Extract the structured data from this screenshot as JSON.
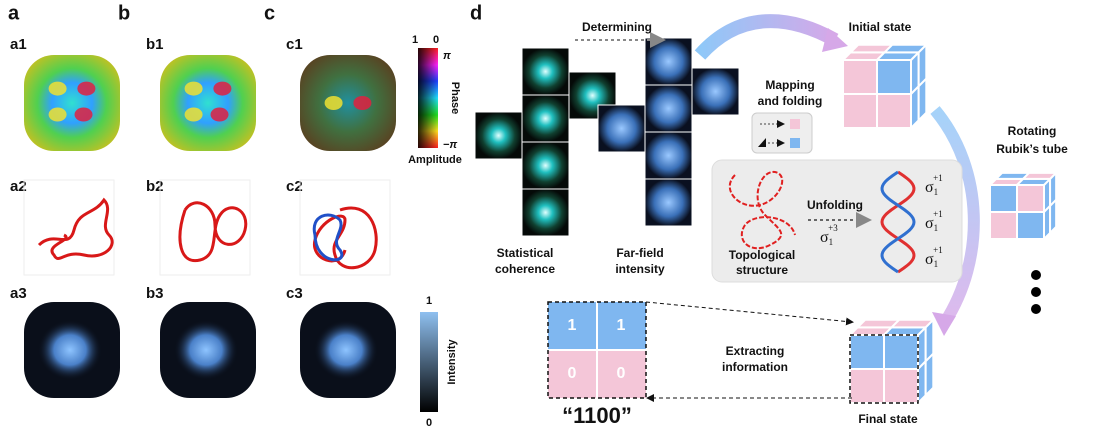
{
  "panels": [
    {
      "label": "a",
      "sublabels": [
        "a1",
        "a2",
        "a3"
      ]
    },
    {
      "label": "b",
      "sublabels": [
        "b1",
        "b2",
        "b3"
      ]
    },
    {
      "label": "c",
      "sublabels": [
        "c1",
        "c2",
        "c3"
      ]
    }
  ],
  "phase_colorbar": {
    "amplitude_max": "1",
    "amplitude_min": "0",
    "phase_max": "π",
    "phase_min": "−π",
    "title": "Phase",
    "bottom_label": "Amplitude"
  },
  "intensity_colorbar": {
    "max": "1",
    "min": "0",
    "title": "Intensity"
  },
  "panel_d": {
    "label": "d",
    "determining": "Determining",
    "statistical_coherence": [
      "Statistical",
      "coherence"
    ],
    "far_field": [
      "Far-field",
      "intensity"
    ],
    "mapping": [
      "Mapping",
      "and folding"
    ],
    "topological": [
      "Topological",
      "structure"
    ],
    "unfolding": "Unfolding",
    "sigma_arrow": {
      "base": "σ",
      "sub": "1",
      "sup": "+3"
    },
    "sigma_labels": [
      {
        "base": "σ",
        "sub": "1",
        "sup": "+1"
      },
      {
        "base": "σ",
        "sub": "1",
        "sup": "+1"
      },
      {
        "base": "σ",
        "sub": "1",
        "sup": "+1"
      }
    ],
    "initial_state": "Initial  state",
    "rotating": [
      "Rotating",
      "Rubik’s tube"
    ],
    "extracting": [
      "Extracting",
      "information"
    ],
    "final_state": "Final state",
    "bits": [
      "1",
      "1",
      "0",
      "0"
    ],
    "code": "“1100”"
  }
}
